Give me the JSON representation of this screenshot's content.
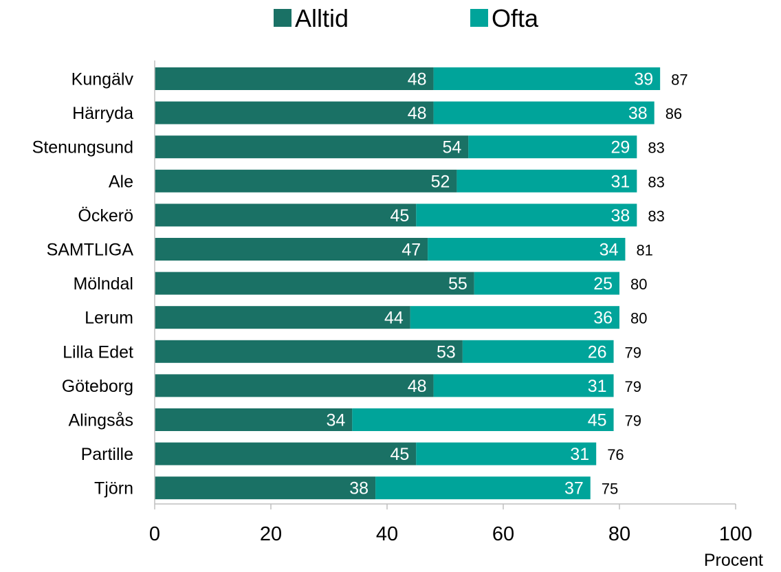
{
  "chart_data": {
    "type": "bar",
    "orientation": "horizontal",
    "stacked": true,
    "title": "",
    "xlabel": "Procent",
    "ylabel": "",
    "xlim": [
      0,
      100
    ],
    "xticks": [
      0,
      20,
      40,
      60,
      80,
      100
    ],
    "grid": false,
    "legend_position": "top",
    "categories": [
      "Kungälv",
      "Härryda",
      "Stenungsund",
      "Ale",
      "Öckerö",
      "SAMTLIGA",
      "Mölndal",
      "Lerum",
      "Lilla Edet",
      "Göteborg",
      "Alingsås",
      "Partille",
      "Tjörn"
    ],
    "series": [
      {
        "name": "Alltid",
        "color": "#1a7165",
        "values": [
          48,
          48,
          54,
          52,
          45,
          47,
          55,
          44,
          53,
          48,
          34,
          45,
          38
        ]
      },
      {
        "name": "Ofta",
        "color": "#00a49a",
        "values": [
          39,
          38,
          29,
          31,
          38,
          34,
          25,
          36,
          26,
          31,
          45,
          31,
          37
        ]
      }
    ],
    "totals": [
      87,
      86,
      83,
      83,
      83,
      81,
      80,
      80,
      79,
      79,
      79,
      76,
      75
    ]
  }
}
